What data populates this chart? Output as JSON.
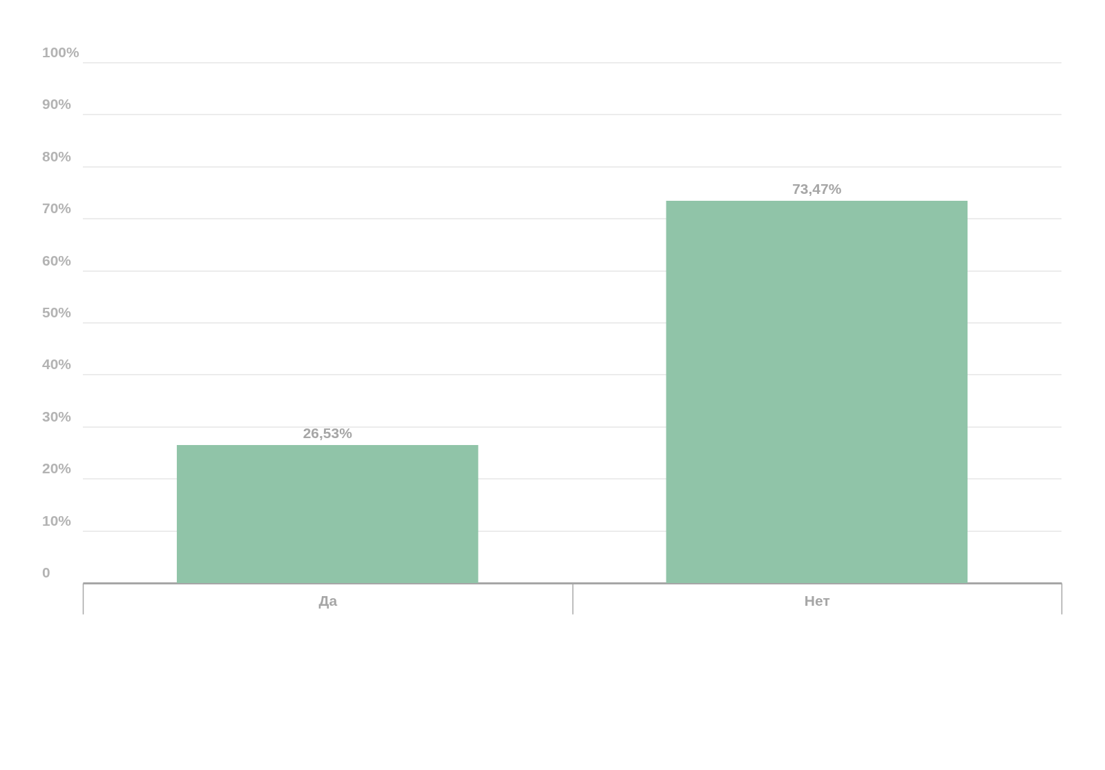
{
  "chart_data": {
    "type": "bar",
    "categories": [
      "Да",
      "Нет"
    ],
    "values": [
      26.53,
      73.47
    ],
    "value_labels": [
      "26,53%",
      "73,47%"
    ],
    "color": "#90c4a8",
    "ylim": [
      0,
      100
    ],
    "yticks": [
      {
        "value": 0,
        "label": "0"
      },
      {
        "value": 10,
        "label": "10%"
      },
      {
        "value": 20,
        "label": "20%"
      },
      {
        "value": 30,
        "label": "30%"
      },
      {
        "value": 40,
        "label": "40%"
      },
      {
        "value": 50,
        "label": "50%"
      },
      {
        "value": 60,
        "label": "60%"
      },
      {
        "value": 70,
        "label": "70%"
      },
      {
        "value": 80,
        "label": "80%"
      },
      {
        "value": 90,
        "label": "90%"
      },
      {
        "value": 100,
        "label": "100%"
      }
    ],
    "grid": "y"
  }
}
